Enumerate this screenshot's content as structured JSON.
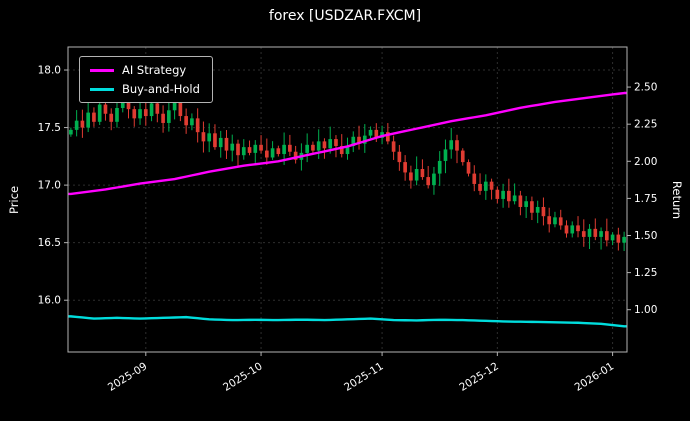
{
  "chart_data": {
    "type": "candlestick+line",
    "title": "forex [USDZAR.FXCM]",
    "ylabel_left": "Price",
    "ylabel_right": "Return",
    "legend_position": "upper-left",
    "grid": true,
    "xtick_positions": [
      13,
      33,
      54,
      74,
      94
    ],
    "xtick_labels": [
      "2025-09",
      "2025-10",
      "2025-11",
      "2025-12",
      "2026-01"
    ],
    "ylim_price": [
      15.55,
      18.2
    ],
    "ylim_return": [
      0.715,
      2.77
    ],
    "yticks_price": {
      "values": [
        16.0,
        16.5,
        17.0,
        17.5,
        18.0
      ],
      "labels": [
        "16.0",
        "16.5",
        "17.0",
        "17.5",
        "18.0"
      ]
    },
    "yticks_return": {
      "values": [
        1.0,
        1.25,
        1.5,
        1.75,
        2.0,
        2.25,
        2.5
      ],
      "labels": [
        "1.00",
        "1.25",
        "1.50",
        "1.75",
        "2.00",
        "2.25",
        "2.50"
      ]
    },
    "candles": {
      "open_first": 17.44,
      "close": [
        17.48,
        17.56,
        17.5,
        17.63,
        17.55,
        17.7,
        17.62,
        17.55,
        17.67,
        17.75,
        17.66,
        17.58,
        17.66,
        17.6,
        17.71,
        17.62,
        17.54,
        17.65,
        17.73,
        17.6,
        17.52,
        17.58,
        17.46,
        17.38,
        17.45,
        17.33,
        17.41,
        17.3,
        17.36,
        17.26,
        17.33,
        17.28,
        17.35,
        17.3,
        17.24,
        17.32,
        17.27,
        17.35,
        17.29,
        17.22,
        17.28,
        17.35,
        17.3,
        17.38,
        17.32,
        17.4,
        17.34,
        17.27,
        17.34,
        17.42,
        17.36,
        17.43,
        17.48,
        17.41,
        17.46,
        17.38,
        17.29,
        17.2,
        17.11,
        17.04,
        17.14,
        17.07,
        17.0,
        17.1,
        17.21,
        17.31,
        17.39,
        17.3,
        17.2,
        17.1,
        17.01,
        16.95,
        17.03,
        16.96,
        16.88,
        16.95,
        16.86,
        16.91,
        16.81,
        16.86,
        16.76,
        16.81,
        16.73,
        16.66,
        16.72,
        16.65,
        16.58,
        16.65,
        16.6,
        16.55,
        16.62,
        16.55,
        16.6,
        16.52,
        16.57,
        16.5,
        16.55
      ],
      "up_color": "#00b050",
      "down_color": "#e03c32"
    },
    "series": [
      {
        "name": "AI Strategy",
        "color": "#ff00ff",
        "axis": "return",
        "keypoints": [
          [
            0,
            1.78
          ],
          [
            6,
            1.81
          ],
          [
            12,
            1.85
          ],
          [
            18,
            1.88
          ],
          [
            24,
            1.93
          ],
          [
            30,
            1.97
          ],
          [
            36,
            2.0
          ],
          [
            42,
            2.05
          ],
          [
            48,
            2.1
          ],
          [
            54,
            2.17
          ],
          [
            60,
            2.22
          ],
          [
            66,
            2.27
          ],
          [
            72,
            2.31
          ],
          [
            78,
            2.36
          ],
          [
            84,
            2.4
          ],
          [
            90,
            2.43
          ],
          [
            96,
            2.46
          ]
        ]
      },
      {
        "name": "Buy-and-Hold",
        "color": "#00dddd",
        "axis": "return",
        "keypoints": [
          [
            0,
            0.955
          ],
          [
            4,
            0.94
          ],
          [
            8,
            0.945
          ],
          [
            12,
            0.94
          ],
          [
            16,
            0.945
          ],
          [
            20,
            0.95
          ],
          [
            24,
            0.935
          ],
          [
            28,
            0.93
          ],
          [
            32,
            0.932
          ],
          [
            36,
            0.93
          ],
          [
            40,
            0.933
          ],
          [
            44,
            0.93
          ],
          [
            48,
            0.935
          ],
          [
            52,
            0.94
          ],
          [
            56,
            0.93
          ],
          [
            60,
            0.928
          ],
          [
            64,
            0.932
          ],
          [
            68,
            0.93
          ],
          [
            72,
            0.925
          ],
          [
            76,
            0.92
          ],
          [
            80,
            0.918
          ],
          [
            84,
            0.915
          ],
          [
            88,
            0.912
          ],
          [
            92,
            0.905
          ],
          [
            96,
            0.888
          ]
        ]
      }
    ],
    "colors": {
      "background": "#000000",
      "text": "#ffffff",
      "spine": "#b3b3b3",
      "grid": "#2e2e2e"
    }
  }
}
